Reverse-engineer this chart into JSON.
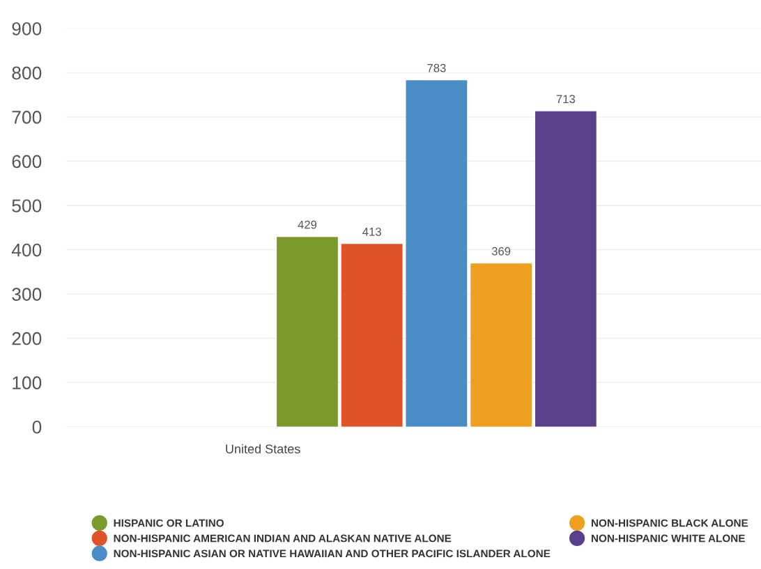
{
  "chart_data": {
    "type": "bar",
    "categories": [
      "United States"
    ],
    "series": [
      {
        "name": "HISPANIC OR LATINO",
        "color": "#7a9a2e",
        "values": [
          429
        ]
      },
      {
        "name": "NON-HISPANIC AMERICAN INDIAN AND ALASKAN NATIVE ALONE",
        "color": "#e0532a",
        "values": [
          413
        ]
      },
      {
        "name": "NON-HISPANIC ASIAN OR NATIVE HAWAIIAN AND OTHER PACIFIC ISLANDER ALONE",
        "color": "#4a8cc6",
        "values": [
          783
        ]
      },
      {
        "name": "NON-HISPANIC BLACK ALONE",
        "color": "#f0a020",
        "values": [
          369
        ]
      },
      {
        "name": "NON-HISPANIC WHITE ALONE",
        "color": "#5a3f8a",
        "values": [
          713
        ]
      }
    ],
    "ylim": [
      0,
      900
    ],
    "yticks": [
      0,
      100,
      200,
      300,
      400,
      500,
      600,
      700,
      800,
      900
    ],
    "grid": "y",
    "legend": "bottom",
    "data_labels": true
  }
}
